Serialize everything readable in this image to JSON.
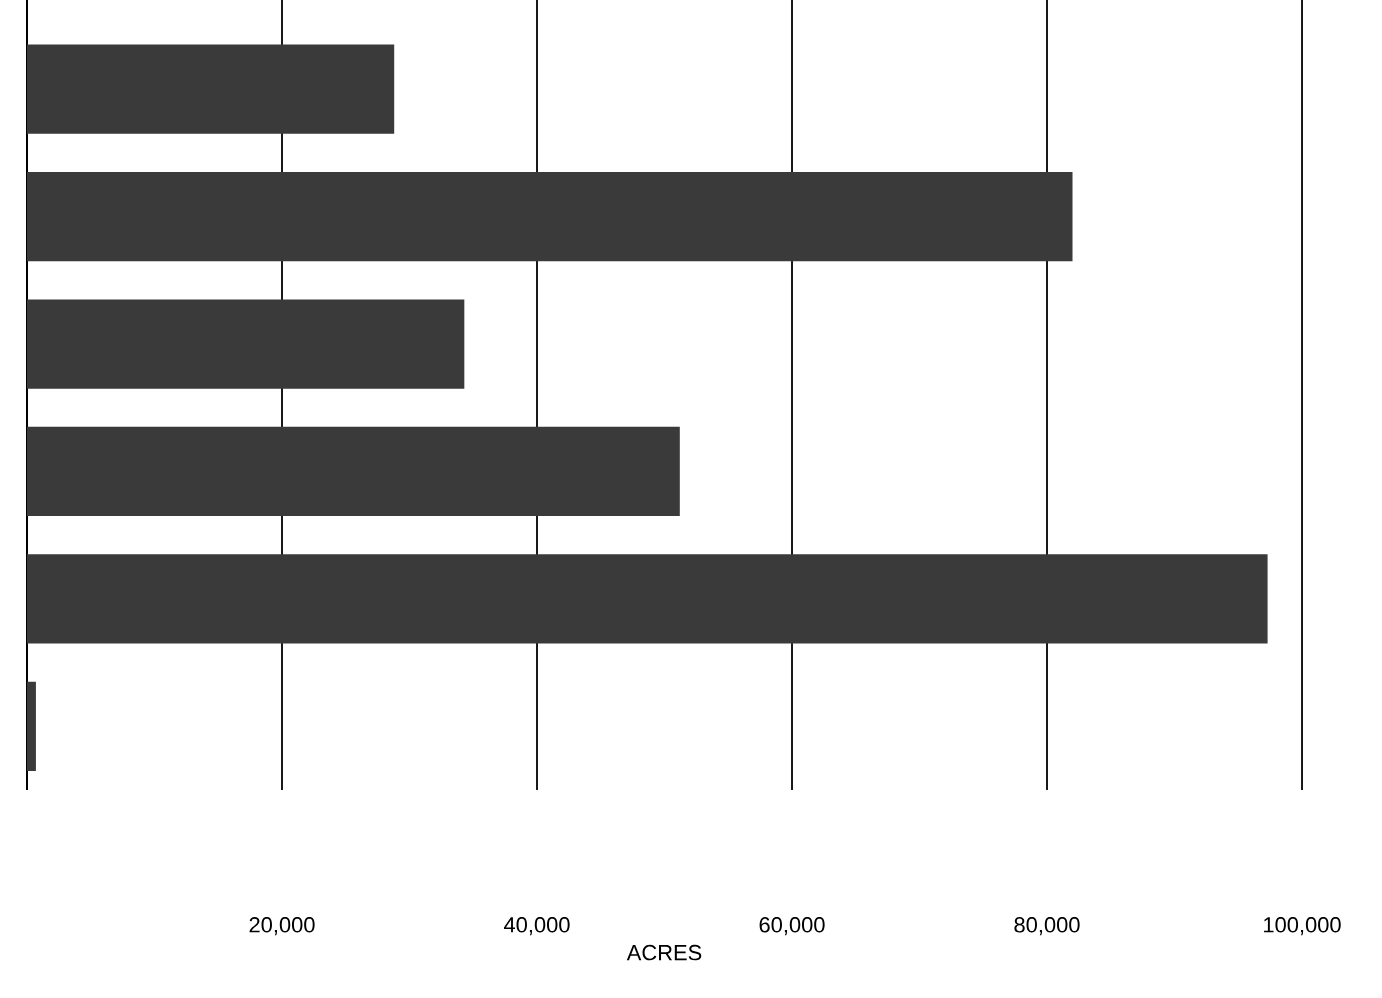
{
  "chart_data": {
    "type": "bar",
    "orientation": "horizontal",
    "xlabel": "ACRES",
    "categories": [
      null,
      null,
      null,
      null,
      null,
      null
    ],
    "values": [
      28800,
      82000,
      34300,
      51200,
      97300,
      700
    ],
    "color": "#3a3a3a",
    "xlim": [
      0,
      100000
    ],
    "xticks": [
      {
        "value": 20000,
        "label": "20,000"
      },
      {
        "value": 40000,
        "label": "40,000"
      },
      {
        "value": 60000,
        "label": "60,000"
      },
      {
        "value": 80000,
        "label": "80,000"
      },
      {
        "value": 100000,
        "label": "100,000"
      }
    ],
    "grid": "x"
  }
}
